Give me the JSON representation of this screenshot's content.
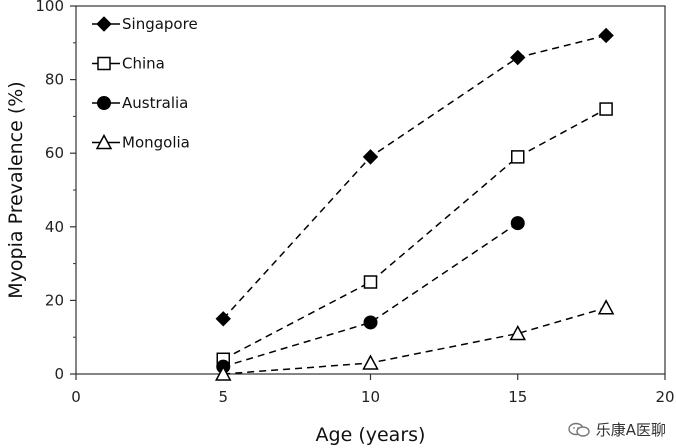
{
  "chart_data": {
    "type": "line",
    "xlabel": "Age (years)",
    "ylabel": "Myopia Prevalence (%)",
    "xlim": [
      0,
      20
    ],
    "ylim": [
      0,
      100
    ],
    "xticks": [
      0,
      5,
      10,
      15,
      20
    ],
    "yticks": [
      0,
      20,
      40,
      60,
      80,
      100
    ],
    "legend_placement": "top-left",
    "grid": false,
    "series": [
      {
        "name": "Singapore",
        "marker": "diamond-filled",
        "line": "dashed",
        "x": [
          5,
          10,
          15,
          18
        ],
        "y": [
          15,
          59,
          86,
          92
        ]
      },
      {
        "name": "China",
        "marker": "square-open",
        "line": "dashed",
        "x": [
          5,
          10,
          15,
          18
        ],
        "y": [
          4,
          25,
          59,
          72
        ]
      },
      {
        "name": "Australia",
        "marker": "circle-filled",
        "line": "dashed",
        "x": [
          5,
          10,
          15
        ],
        "y": [
          2,
          14,
          41
        ]
      },
      {
        "name": "Mongolia",
        "marker": "triangle-open",
        "line": "dashed",
        "x": [
          5,
          10,
          15,
          18
        ],
        "y": [
          0,
          3,
          11,
          18
        ]
      }
    ]
  },
  "watermark": {
    "icon": "wechat-icon",
    "text": "乐康A医聊"
  }
}
